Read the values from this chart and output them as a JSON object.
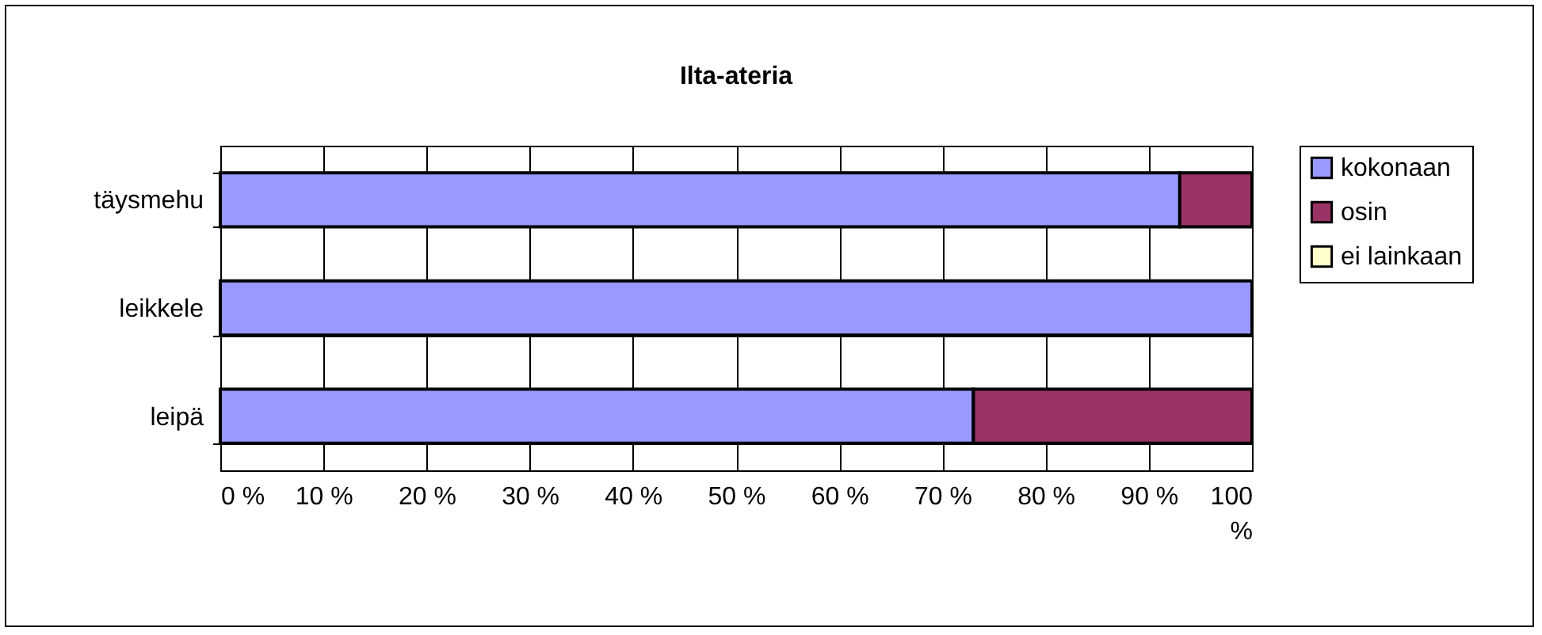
{
  "chart_data": {
    "type": "bar",
    "title": "Ilta-ateria",
    "orientation": "horizontal",
    "stacked": true,
    "categories": [
      "täysmehu",
      "leikkele",
      "leipä"
    ],
    "series": [
      {
        "name": "kokonaan",
        "color": "#9999ff",
        "values": [
          93,
          100,
          73
        ]
      },
      {
        "name": "osin",
        "color": "#993366",
        "values": [
          7,
          0,
          27
        ]
      },
      {
        "name": "ei lainkaan",
        "color": "#ffffcc",
        "values": [
          0,
          0,
          0
        ]
      }
    ],
    "xlim": [
      0,
      100
    ],
    "xticks": [
      {
        "value": 0,
        "label": "0 %"
      },
      {
        "value": 10,
        "label": "10 %"
      },
      {
        "value": 20,
        "label": "20 %"
      },
      {
        "value": 30,
        "label": "30 %"
      },
      {
        "value": 40,
        "label": "40 %"
      },
      {
        "value": 50,
        "label": "50 %"
      },
      {
        "value": 60,
        "label": "60 %"
      },
      {
        "value": 70,
        "label": "70 %"
      },
      {
        "value": 80,
        "label": "80 %"
      },
      {
        "value": 90,
        "label": "90 %"
      },
      {
        "value": 100,
        "label": "100 %"
      }
    ],
    "grid": true,
    "legend": "right"
  }
}
